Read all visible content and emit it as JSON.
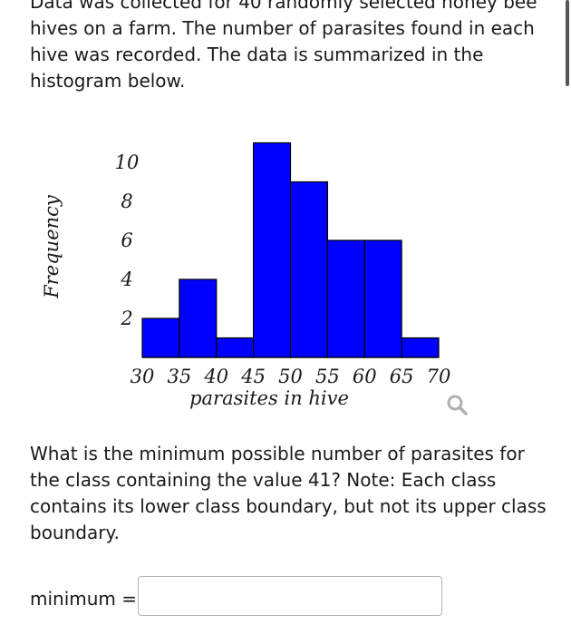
{
  "problem": {
    "intro": "Data was collected for 40 randomly selected honey bee hives on a farm. The number of parasites found in each hive was recorded. The data is summarized in the histogram below.",
    "question": "What is the minimum possible number of parasites for the class containing the value 41? Note: Each class contains its lower class boundary, but not its upper class boundary.",
    "answer_label": "minimum =",
    "answer_value": ""
  },
  "chart_data": {
    "type": "bar",
    "subtype": "histogram",
    "bins": [
      [
        30,
        35
      ],
      [
        35,
        40
      ],
      [
        40,
        45
      ],
      [
        45,
        50
      ],
      [
        50,
        55
      ],
      [
        55,
        60
      ],
      [
        60,
        65
      ],
      [
        65,
        70
      ]
    ],
    "values": [
      2,
      4,
      1,
      11,
      9,
      6,
      6,
      1
    ],
    "x_ticks": [
      "30",
      "35",
      "40",
      "45",
      "50",
      "55",
      "60",
      "65",
      "70"
    ],
    "y_ticks": [
      "2",
      "4",
      "6",
      "8",
      "10"
    ],
    "xlabel": "parasites in hive",
    "ylabel": "Frequency",
    "ylim": [
      0,
      11
    ],
    "xlim": [
      30,
      70
    ],
    "grid": false,
    "bar_color": "#0000ff",
    "bar_edge_color": "#000000"
  },
  "icons": {
    "search": "search-icon"
  }
}
